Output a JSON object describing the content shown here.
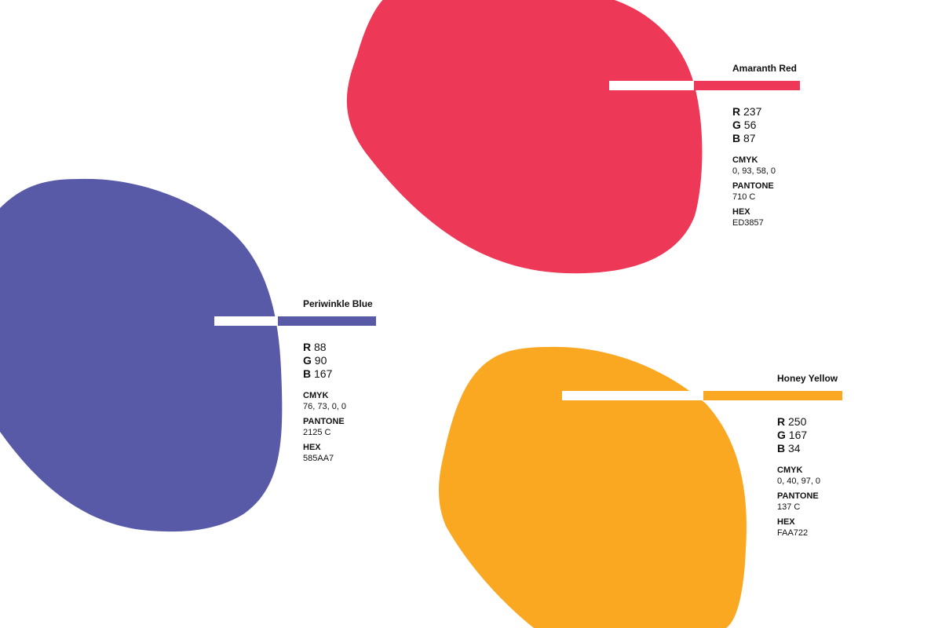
{
  "swatches": [
    {
      "name": "Amaranth Red",
      "r_label": "R",
      "r": 237,
      "g_label": "G",
      "g": 56,
      "b_label": "B",
      "b": 87,
      "cmyk_label": "CMYK",
      "cmyk": "0, 93, 58, 0",
      "pantone_label": "PANTONE",
      "pantone": "710 C",
      "hex_label": "HEX",
      "hex": "ED3857"
    },
    {
      "name": "Periwinkle Blue",
      "r_label": "R",
      "r": 88,
      "g_label": "G",
      "g": 90,
      "b_label": "B",
      "b": 167,
      "cmyk_label": "CMYK",
      "cmyk": "76, 73, 0, 0",
      "pantone_label": "PANTONE",
      "pantone": "2125 C",
      "hex_label": "HEX",
      "hex": "585AA7"
    },
    {
      "name": "Honey Yellow",
      "r_label": "R",
      "r": 250,
      "g_label": "G",
      "g": 167,
      "b_label": "B",
      "b": 34,
      "cmyk_label": "CMYK",
      "cmyk": "0, 40, 97, 0",
      "pantone_label": "PANTONE",
      "pantone": "137 C",
      "hex_label": "HEX",
      "hex": "FAA722"
    }
  ]
}
